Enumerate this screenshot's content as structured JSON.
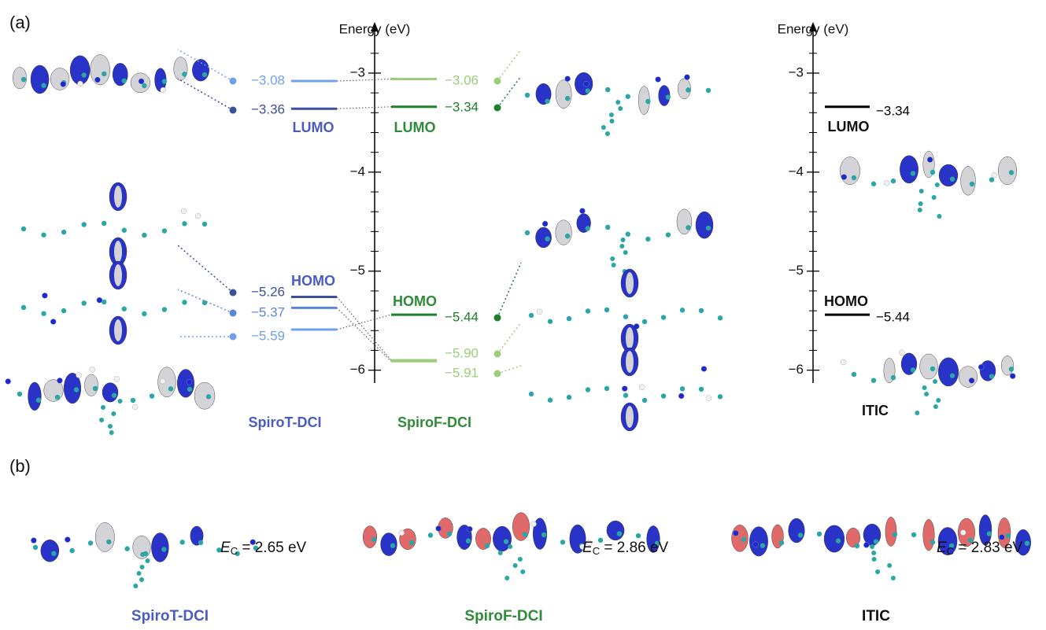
{
  "panel_a": {
    "label": "(a)",
    "axes": [
      {
        "title": "Energy (eV)",
        "ylim": [
          -6.13,
          -2.5
        ],
        "yticks": [
          {
            "value": -3,
            "label": "−3"
          },
          {
            "value": -4,
            "label": "−4"
          },
          {
            "value": -5,
            "label": "−5"
          },
          {
            "value": -6,
            "label": "−6"
          }
        ],
        "minor_yticks": [
          -2.8,
          -3.2,
          -3.4,
          -3.6,
          -3.8,
          -4.2,
          -4.4,
          -4.6,
          -4.8,
          -5.2,
          -5.4,
          -5.6,
          -5.8
        ]
      },
      {
        "title": "Energy (eV)",
        "ylim": [
          -6.13,
          -2.5
        ],
        "yticks": [
          {
            "value": -3,
            "label": "−3"
          },
          {
            "value": -4,
            "label": "−4"
          },
          {
            "value": -5,
            "label": "−5"
          },
          {
            "value": -6,
            "label": "−6"
          }
        ],
        "minor_yticks": [
          -2.8,
          -3.2,
          -3.4,
          -3.6,
          -3.8,
          -4.2,
          -4.4,
          -4.6,
          -4.8,
          -5.2,
          -5.4,
          -5.6,
          -5.8
        ]
      }
    ],
    "molecules": [
      {
        "name": "SpiroT-DCI",
        "color": "#4a5cc0",
        "lumo": "LUMO",
        "homo": "HOMO",
        "levels": [
          {
            "value": -3.08,
            "label": "−3.08",
            "color": "#6fa0ec"
          },
          {
            "value": -3.36,
            "label": "−3.36",
            "color": "#3b4f9e"
          },
          {
            "value": -5.26,
            "label": "−5.26",
            "color": "#3b4f9e"
          },
          {
            "value": -5.37,
            "label": "−5.37",
            "color": "#5a86d8"
          },
          {
            "value": -5.59,
            "label": "−5.59",
            "color": "#6fa0ec"
          }
        ]
      },
      {
        "name": "SpiroF-DCI",
        "color": "#2e8b3a",
        "lumo": "LUMO",
        "homo": "HOMO",
        "levels": [
          {
            "value": -3.06,
            "label": "−3.06",
            "color": "#9ccd7c"
          },
          {
            "value": -3.34,
            "label": "−3.34",
            "color": "#1f7f2a"
          },
          {
            "value": -5.44,
            "label": "−5.44",
            "color": "#1f7f2a"
          },
          {
            "value": -5.9,
            "label": "−5.90",
            "color": "#9ccd7c"
          },
          {
            "value": -5.91,
            "label": "−5.91",
            "color": "#9ccd7c"
          }
        ]
      },
      {
        "name": "ITIC",
        "color": "#111111",
        "lumo": "LUMO",
        "homo": "HOMO",
        "levels": [
          {
            "value": -3.34,
            "label": "−3.34",
            "color": "#000000"
          },
          {
            "value": -5.44,
            "label": "−5.44",
            "color": "#000000"
          }
        ]
      }
    ]
  },
  "panel_b": {
    "label": "(b)",
    "molecules": [
      {
        "name": "SpiroT-DCI",
        "color": "#4a5cc0",
        "symbol": "E",
        "sub": "C",
        "text": " = 2.65 eV"
      },
      {
        "name": "SpiroF-DCI",
        "color": "#2e8b3a",
        "symbol": "E",
        "sub": "C",
        "text": " = 2.86 eV"
      },
      {
        "name": "ITIC",
        "color": "#111111",
        "symbol": "E",
        "sub": "C",
        "text": " = 2.83 eV"
      }
    ]
  }
}
